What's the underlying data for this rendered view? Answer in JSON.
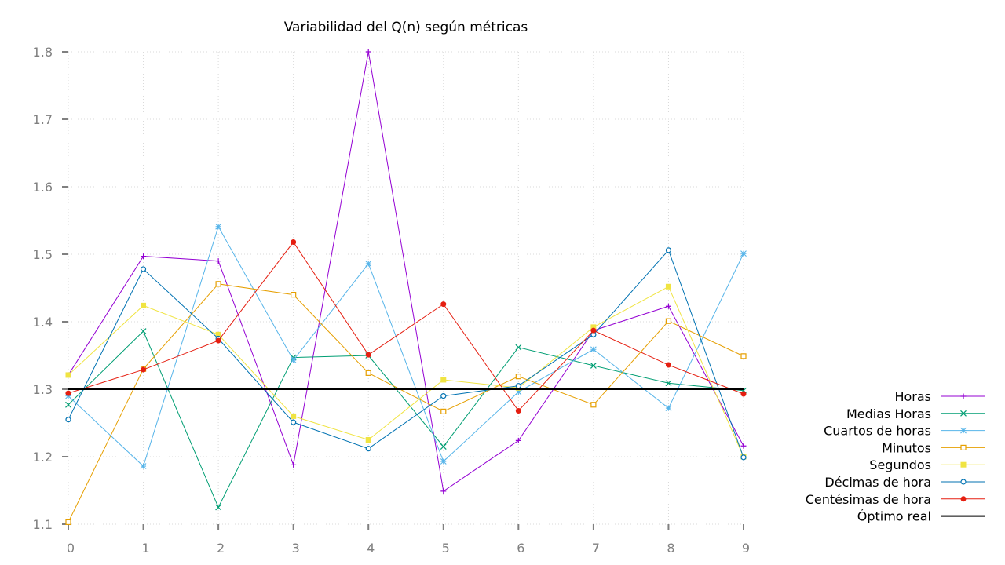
{
  "chart_data": {
    "type": "line",
    "title": "Variabilidad del Q(n) según métricas",
    "xlabel": "",
    "ylabel": "",
    "x": [
      0,
      1,
      2,
      3,
      4,
      5,
      6,
      7,
      8,
      9
    ],
    "xlim": [
      0,
      9
    ],
    "ylim": [
      1.1,
      1.8
    ],
    "xticks": [
      "0",
      "1",
      "2",
      "3",
      "4",
      "5",
      "6",
      "7",
      "8",
      "9"
    ],
    "yticks": [
      "1.1",
      "1.2",
      "1.3",
      "1.4",
      "1.5",
      "1.6",
      "1.7",
      "1.8"
    ],
    "grid": true,
    "legend_position": "right",
    "series": [
      {
        "name": "Horas",
        "color": "#9400d3",
        "marker": "plus",
        "values": [
          1.321,
          1.497,
          1.49,
          1.188,
          1.8,
          1.149,
          1.224,
          1.387,
          1.423,
          1.216
        ]
      },
      {
        "name": "Medias Horas",
        "color": "#009e73",
        "marker": "cross",
        "values": [
          1.277,
          1.386,
          1.125,
          1.347,
          1.35,
          1.215,
          1.362,
          1.335,
          1.309,
          1.298
        ]
      },
      {
        "name": "Cuartos de horas",
        "color": "#56b4e9",
        "marker": "star",
        "values": [
          1.29,
          1.186,
          1.541,
          1.343,
          1.486,
          1.193,
          1.296,
          1.359,
          1.272,
          1.501
        ]
      },
      {
        "name": "Minutos",
        "color": "#e69f00",
        "marker": "square-open",
        "values": [
          1.103,
          1.33,
          1.456,
          1.44,
          1.324,
          1.267,
          1.319,
          1.277,
          1.401,
          1.349
        ]
      },
      {
        "name": "Segundos",
        "color": "#f0e442",
        "marker": "square-filled",
        "values": [
          1.321,
          1.424,
          1.381,
          1.26,
          1.225,
          1.314,
          1.302,
          1.392,
          1.452,
          1.2
        ]
      },
      {
        "name": "Décimas de hora",
        "color": "#0072b2",
        "marker": "circle-open",
        "values": [
          1.255,
          1.478,
          1.375,
          1.251,
          1.212,
          1.29,
          1.305,
          1.381,
          1.506,
          1.199
        ]
      },
      {
        "name": "Centésimas de hora",
        "color": "#e51e10",
        "marker": "circle-filled",
        "values": [
          1.294,
          1.329,
          1.372,
          1.518,
          1.351,
          1.426,
          1.268,
          1.387,
          1.336,
          1.293
        ]
      },
      {
        "name": "Óptimo real",
        "color": "#000000",
        "marker": "none",
        "values": [
          1.3,
          1.3,
          1.3,
          1.3,
          1.3,
          1.3,
          1.3,
          1.3,
          1.3,
          1.3
        ]
      }
    ]
  }
}
